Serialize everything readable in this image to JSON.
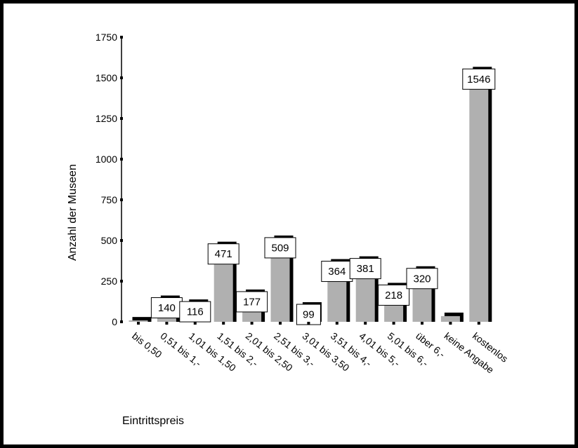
{
  "chart_data": {
    "type": "bar",
    "title": "",
    "xlabel": "Eintrittspreis",
    "ylabel": "Anzahl der Museen",
    "ylim": [
      0,
      1750
    ],
    "yticks": [
      0,
      250,
      500,
      750,
      1000,
      1250,
      1500,
      1750
    ],
    "grid": false,
    "categories": [
      "bis 0,50",
      "0,51 bis 1,-",
      "1,01 bis 1,50",
      "1,51 bis 2,-",
      "2,01 bis 2,50",
      "2,51 bis 3,-",
      "3,01 bis 3,50",
      "3,51 bis 4,-",
      "4,01 bis 5,-",
      "5,01 bis 6,-",
      "über 6,-",
      "keine Angabe",
      "kostenlos"
    ],
    "values": [
      8,
      140,
      116,
      471,
      177,
      509,
      99,
      364,
      381,
      218,
      320,
      35,
      1546
    ],
    "data_labels": [
      "",
      "140",
      "116",
      "471",
      "177",
      "509",
      "99",
      "364",
      "381",
      "218",
      "320",
      "",
      "1546"
    ],
    "colors": {
      "bar": "#b0b0b0",
      "shadow": "#000000",
      "axis": "#000000"
    }
  }
}
